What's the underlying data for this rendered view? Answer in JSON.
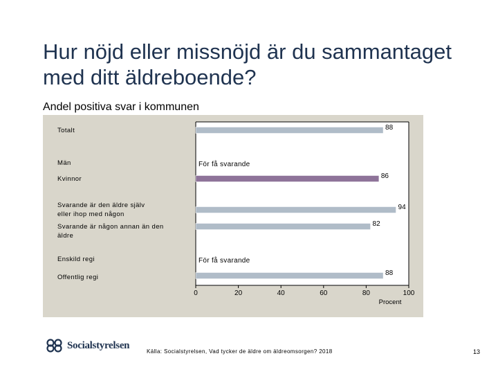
{
  "title": "Hur nöjd eller missnöjd är du sammantaget med ditt äldreboende?",
  "subtitle": "Andel positiva svar i kommunen",
  "chart_data": {
    "type": "bar",
    "orientation": "horizontal",
    "xlim": [
      0,
      100
    ],
    "xticks": [
      0,
      20,
      40,
      60,
      80,
      100
    ],
    "xlabel": "Procent",
    "categories": [
      {
        "label": "Totalt",
        "value": 88,
        "value_label": "88",
        "color": "#b0bcc8"
      },
      {
        "label": "Män",
        "value": null,
        "value_label": "För få svarande",
        "color": "#b0bcc8"
      },
      {
        "label": "Kvinnor",
        "value": 86,
        "value_label": "86",
        "color": "#8e7399"
      },
      {
        "label": "Svarande är den äldre själv eller ihop med någon",
        "value": 94,
        "value_label": "94",
        "color": "#b0bcc8"
      },
      {
        "label": "Svarande är någon annan än den äldre",
        "value": 82,
        "value_label": "82",
        "color": "#b0bcc8"
      },
      {
        "label": "Enskild regi",
        "value": null,
        "value_label": "För få svarande",
        "color": "#b0bcc8"
      },
      {
        "label": "Offentlig regi",
        "value": 88,
        "value_label": "88",
        "color": "#b0bcc8"
      }
    ]
  },
  "footer": {
    "logo_text": "Socialstyrelsen",
    "source": "Källa: Socialstyrelsen, Vad tycker de äldre om äldreomsorgen? 2018",
    "page_number": "13"
  }
}
